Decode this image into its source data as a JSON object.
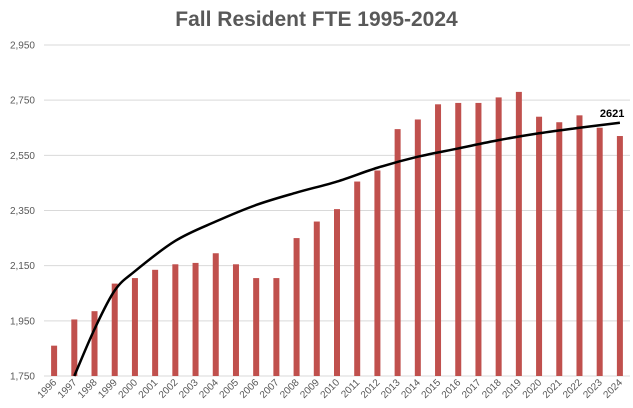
{
  "chart_data": {
    "type": "bar",
    "title": "Fall Resident FTE 1995-2024",
    "xlabel": "",
    "ylabel": "",
    "categories": [
      "1996",
      "1997",
      "1998",
      "1999",
      "2000",
      "2001",
      "2002",
      "2003",
      "2004",
      "2005",
      "2006",
      "2007",
      "2008",
      "2009",
      "2010",
      "2011",
      "2012",
      "2013",
      "2014",
      "2015",
      "2016",
      "2017",
      "2018",
      "2019",
      "2020",
      "2021",
      "2022",
      "2023",
      "2024"
    ],
    "series": [
      {
        "name": "Fall Resident FTE",
        "values": [
          1860,
          1955,
          1985,
          2085,
          2105,
          2135,
          2155,
          2160,
          2195,
          2155,
          2105,
          2105,
          2250,
          2310,
          2355,
          2455,
          2495,
          2645,
          2680,
          2735,
          2740,
          2740,
          2760,
          2780,
          2690,
          2670,
          2695,
          2650,
          2620
        ]
      }
    ],
    "trendline": {
      "type": "logarithmic",
      "points": [
        [
          "1997",
          1750
        ],
        [
          "1998",
          1920
        ],
        [
          "1999",
          2060
        ],
        [
          "2000",
          2130
        ],
        [
          "2002",
          2240
        ],
        [
          "2004",
          2310
        ],
        [
          "2006",
          2370
        ],
        [
          "2008",
          2415
        ],
        [
          "2010",
          2455
        ],
        [
          "2012",
          2505
        ],
        [
          "2014",
          2545
        ],
        [
          "2016",
          2575
        ],
        [
          "2018",
          2605
        ],
        [
          "2020",
          2630
        ],
        [
          "2022",
          2650
        ],
        [
          "2024",
          2668
        ]
      ]
    },
    "annotations": [
      {
        "category": "2024",
        "text": "2621"
      }
    ],
    "ylim": [
      1750,
      2950
    ],
    "yticks": [
      1750,
      1950,
      2150,
      2350,
      2550,
      2750,
      2950
    ],
    "ytick_labels": [
      "1,750",
      "1,950",
      "2,150",
      "2,350",
      "2,550",
      "2,750",
      "2,950"
    ],
    "grid": true,
    "colors": {
      "bar": "#c0504d",
      "trend": "#000000",
      "grid": "#d9d9d9",
      "text": "#595959"
    }
  }
}
